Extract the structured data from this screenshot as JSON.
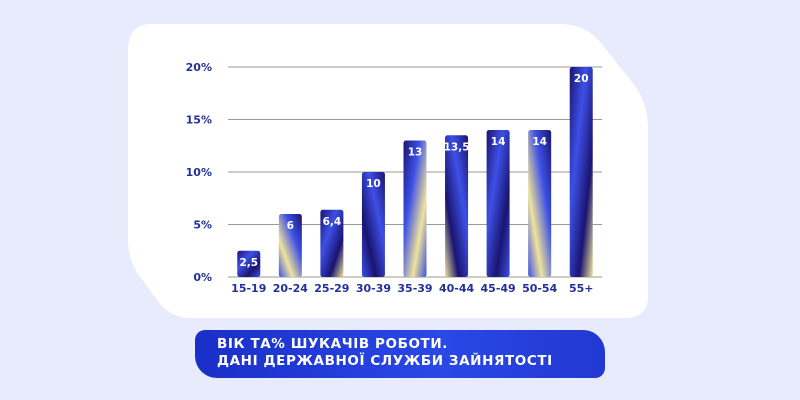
{
  "chart_data": {
    "type": "bar",
    "categories": [
      "15-19",
      "20-24",
      "25-29",
      "30-39",
      "35-39",
      "40-44",
      "45-49",
      "50-54",
      "55+"
    ],
    "values": [
      2.5,
      6,
      6.4,
      10,
      13,
      13.5,
      14,
      14,
      20
    ],
    "value_labels": [
      "2,5",
      "6",
      "6,4",
      "10",
      "13",
      "13,5",
      "14",
      "14",
      "20"
    ],
    "y_ticks": [
      "0%",
      "5%",
      "10%",
      "15%",
      "20%"
    ],
    "ylim": [
      0,
      20
    ],
    "grid": true,
    "title": ""
  },
  "caption": {
    "line1": "ВІК ТА% ШУКАЧІВ РОБОТИ.",
    "line2": "ДАНІ ДЕРЖАВНОЇ СЛУЖБИ ЗАЙНЯТОСТІ"
  },
  "colors": {
    "page_background": "#e7ebfc",
    "card": "#ffffff",
    "bar_dark": "#1a1470",
    "bar_blue": "#3d50e6",
    "bar_yellow": "#efe39a",
    "tick_text": "#24309a",
    "banner": "#2238d2"
  }
}
